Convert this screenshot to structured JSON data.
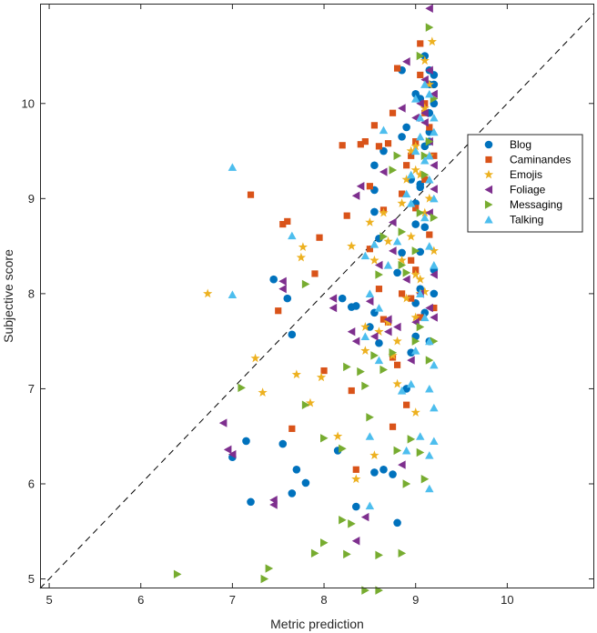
{
  "chart_data": {
    "type": "scatter",
    "title": "",
    "xlabel": "Metric prediction",
    "ylabel": "Subjective score",
    "xlim": [
      4.9,
      10.95
    ],
    "ylim": [
      4.9,
      11.05
    ],
    "xticks": [
      5,
      6,
      7,
      8,
      9,
      10
    ],
    "yticks": [
      5,
      6,
      7,
      8,
      9,
      10
    ],
    "grid": false,
    "legend_position": "right",
    "reference_line": {
      "x": [
        4.9,
        10.95
      ],
      "y": [
        4.9,
        10.95
      ],
      "style": "dashed",
      "color": "#000000"
    },
    "series": [
      {
        "name": "Blog",
        "marker": "circle",
        "color": "#0072BD",
        "points": [
          [
            7.0,
            6.28
          ],
          [
            7.15,
            6.45
          ],
          [
            7.2,
            5.81
          ],
          [
            7.55,
            6.42
          ],
          [
            7.65,
            5.9
          ],
          [
            7.7,
            6.15
          ],
          [
            7.8,
            6.01
          ],
          [
            7.45,
            8.15
          ],
          [
            7.6,
            7.95
          ],
          [
            7.65,
            7.57
          ],
          [
            8.2,
            7.95
          ],
          [
            8.3,
            7.86
          ],
          [
            8.35,
            7.87
          ],
          [
            8.15,
            6.35
          ],
          [
            8.35,
            5.76
          ],
          [
            8.5,
            7.65
          ],
          [
            8.55,
            7.8
          ],
          [
            8.6,
            7.48
          ],
          [
            8.55,
            6.12
          ],
          [
            8.65,
            6.15
          ],
          [
            8.75,
            6.1
          ],
          [
            8.8,
            5.59
          ],
          [
            8.85,
            8.43
          ],
          [
            8.9,
            7.0
          ],
          [
            8.95,
            7.38
          ],
          [
            9.0,
            7.55
          ],
          [
            8.55,
            8.86
          ],
          [
            8.55,
            9.35
          ],
          [
            8.55,
            9.09
          ],
          [
            8.6,
            8.58
          ],
          [
            8.65,
            9.5
          ],
          [
            8.8,
            8.22
          ],
          [
            8.85,
            9.65
          ],
          [
            8.9,
            9.75
          ],
          [
            8.95,
            9.2
          ],
          [
            9.0,
            8.95
          ],
          [
            9.0,
            8.73
          ],
          [
            9.05,
            8.44
          ],
          [
            9.0,
            7.9
          ],
          [
            9.05,
            9.12
          ],
          [
            9.1,
            9.55
          ],
          [
            9.1,
            8.7
          ],
          [
            9.15,
            9.9
          ],
          [
            9.15,
            10.2
          ],
          [
            9.2,
            10.3
          ],
          [
            9.15,
            10.35
          ],
          [
            9.2,
            10.0
          ],
          [
            9.05,
            10.05
          ],
          [
            8.85,
            10.35
          ],
          [
            9.0,
            10.1
          ],
          [
            9.1,
            7.8
          ],
          [
            9.2,
            8.0
          ],
          [
            9.15,
            7.5
          ],
          [
            9.15,
            9.6
          ],
          [
            9.05,
            9.15
          ],
          [
            9.1,
            10.5
          ],
          [
            9.2,
            10.2
          ],
          [
            9.15,
            9.7
          ],
          [
            9.2,
            8.25
          ],
          [
            9.05,
            8.05
          ]
        ]
      },
      {
        "name": "Caminandes",
        "marker": "square",
        "color": "#D95319",
        "points": [
          [
            7.2,
            9.04
          ],
          [
            7.55,
            8.73
          ],
          [
            7.6,
            8.76
          ],
          [
            7.5,
            7.82
          ],
          [
            7.95,
            8.59
          ],
          [
            7.9,
            8.21
          ],
          [
            8.0,
            7.19
          ],
          [
            7.65,
            6.58
          ],
          [
            8.25,
            8.82
          ],
          [
            8.3,
            6.98
          ],
          [
            8.35,
            6.15
          ],
          [
            8.2,
            9.56
          ],
          [
            8.4,
            9.57
          ],
          [
            8.45,
            9.6
          ],
          [
            8.5,
            9.13
          ],
          [
            8.55,
            9.77
          ],
          [
            8.6,
            9.55
          ],
          [
            8.65,
            8.88
          ],
          [
            8.7,
            9.58
          ],
          [
            8.75,
            9.9
          ],
          [
            8.8,
            10.37
          ],
          [
            8.75,
            7.33
          ],
          [
            8.8,
            7.25
          ],
          [
            8.75,
            6.6
          ],
          [
            8.9,
            6.83
          ],
          [
            8.95,
            7.95
          ],
          [
            8.9,
            9.35
          ],
          [
            9.0,
            9.6
          ],
          [
            9.05,
            10.63
          ],
          [
            8.85,
            9.05
          ],
          [
            8.95,
            8.35
          ],
          [
            9.0,
            8.25
          ],
          [
            9.05,
            10.3
          ],
          [
            9.1,
            9.9
          ],
          [
            9.1,
            9.2
          ],
          [
            9.15,
            8.62
          ],
          [
            9.2,
            9.45
          ],
          [
            9.2,
            7.85
          ],
          [
            9.15,
            9.75
          ],
          [
            9.05,
            7.75
          ],
          [
            9.1,
            10.0
          ],
          [
            8.5,
            8.47
          ],
          [
            8.6,
            8.05
          ],
          [
            8.65,
            7.73
          ],
          [
            8.7,
            7.7
          ],
          [
            8.85,
            8.0
          ],
          [
            8.95,
            9.45
          ],
          [
            9.0,
            8.9
          ]
        ]
      },
      {
        "name": "Emojis",
        "marker": "star",
        "color": "#EDB120",
        "points": [
          [
            6.73,
            8.0
          ],
          [
            7.25,
            7.32
          ],
          [
            7.33,
            6.96
          ],
          [
            7.7,
            7.15
          ],
          [
            7.75,
            8.38
          ],
          [
            7.77,
            8.49
          ],
          [
            7.85,
            6.85
          ],
          [
            7.97,
            7.12
          ],
          [
            8.15,
            6.5
          ],
          [
            8.3,
            8.5
          ],
          [
            8.35,
            6.05
          ],
          [
            8.45,
            7.65
          ],
          [
            8.45,
            7.4
          ],
          [
            8.5,
            8.75
          ],
          [
            8.55,
            8.35
          ],
          [
            8.6,
            7.6
          ],
          [
            8.55,
            6.3
          ],
          [
            8.7,
            7.7
          ],
          [
            8.75,
            7.35
          ],
          [
            8.8,
            7.5
          ],
          [
            8.8,
            7.05
          ],
          [
            8.9,
            7.95
          ],
          [
            9.0,
            6.75
          ],
          [
            9.0,
            8.2
          ],
          [
            9.05,
            8.15
          ],
          [
            9.1,
            8.02
          ],
          [
            9.0,
            9.3
          ],
          [
            8.85,
            8.95
          ],
          [
            8.95,
            9.5
          ],
          [
            9.0,
            9.55
          ],
          [
            9.1,
            9.95
          ],
          [
            9.15,
            10.2
          ],
          [
            9.18,
            10.65
          ],
          [
            9.1,
            10.45
          ],
          [
            9.05,
            8.0
          ],
          [
            8.65,
            8.85
          ],
          [
            8.9,
            9.2
          ],
          [
            9.05,
            9.25
          ],
          [
            9.1,
            8.85
          ],
          [
            9.15,
            9.0
          ],
          [
            8.7,
            8.55
          ],
          [
            8.85,
            8.35
          ],
          [
            8.95,
            8.6
          ],
          [
            9.15,
            9.45
          ],
          [
            9.2,
            8.45
          ],
          [
            9.0,
            7.75
          ]
        ]
      },
      {
        "name": "Foliage",
        "marker": "triangle-left",
        "color": "#7E2F8E",
        "points": [
          [
            6.9,
            6.64
          ],
          [
            6.95,
            6.36
          ],
          [
            7.0,
            6.31
          ],
          [
            7.45,
            5.83
          ],
          [
            7.45,
            5.78
          ],
          [
            7.55,
            8.13
          ],
          [
            7.55,
            8.05
          ],
          [
            8.1,
            7.95
          ],
          [
            8.1,
            7.85
          ],
          [
            8.35,
            5.4
          ],
          [
            8.45,
            5.65
          ],
          [
            8.3,
            7.6
          ],
          [
            8.35,
            7.5
          ],
          [
            8.5,
            7.92
          ],
          [
            8.55,
            7.55
          ],
          [
            8.6,
            8.3
          ],
          [
            8.7,
            7.73
          ],
          [
            8.7,
            7.6
          ],
          [
            8.8,
            7.65
          ],
          [
            8.85,
            6.2
          ],
          [
            8.95,
            7.3
          ],
          [
            8.35,
            9.03
          ],
          [
            8.4,
            9.13
          ],
          [
            8.65,
            9.28
          ],
          [
            8.75,
            8.75
          ],
          [
            8.85,
            9.95
          ],
          [
            8.9,
            10.44
          ],
          [
            9.0,
            9.85
          ],
          [
            9.05,
            10.0
          ],
          [
            9.1,
            10.25
          ],
          [
            9.15,
            11.0
          ],
          [
            9.15,
            10.35
          ],
          [
            9.2,
            10.1
          ],
          [
            9.1,
            9.8
          ],
          [
            9.15,
            9.6
          ],
          [
            9.2,
            9.35
          ],
          [
            9.15,
            8.85
          ],
          [
            9.2,
            8.2
          ],
          [
            9.05,
            8.0
          ],
          [
            9.15,
            7.85
          ],
          [
            9.2,
            7.75
          ],
          [
            9.0,
            7.7
          ],
          [
            8.9,
            8.15
          ],
          [
            9.2,
            9.1
          ],
          [
            9.1,
            9.9
          ],
          [
            8.75,
            8.45
          ]
        ]
      },
      {
        "name": "Messaging",
        "marker": "triangle-right",
        "color": "#77AC30",
        "points": [
          [
            6.4,
            5.05
          ],
          [
            7.35,
            5.0
          ],
          [
            7.4,
            5.11
          ],
          [
            7.1,
            7.01
          ],
          [
            7.8,
            6.83
          ],
          [
            7.8,
            8.1
          ],
          [
            7.9,
            5.27
          ],
          [
            8.0,
            5.38
          ],
          [
            8.0,
            6.48
          ],
          [
            8.2,
            5.62
          ],
          [
            8.2,
            6.37
          ],
          [
            8.25,
            5.26
          ],
          [
            8.3,
            5.58
          ],
          [
            8.25,
            7.23
          ],
          [
            8.4,
            7.18
          ],
          [
            8.45,
            4.88
          ],
          [
            8.5,
            6.7
          ],
          [
            8.6,
            4.88
          ],
          [
            8.6,
            5.25
          ],
          [
            8.65,
            7.2
          ],
          [
            8.75,
            7.38
          ],
          [
            8.8,
            6.35
          ],
          [
            8.85,
            5.27
          ],
          [
            8.9,
            6.0
          ],
          [
            8.95,
            6.47
          ],
          [
            9.05,
            6.33
          ],
          [
            9.1,
            6.05
          ],
          [
            9.0,
            7.5
          ],
          [
            9.05,
            7.65
          ],
          [
            8.45,
            7.03
          ],
          [
            8.55,
            7.35
          ],
          [
            8.6,
            8.2
          ],
          [
            8.75,
            9.3
          ],
          [
            8.8,
            9.45
          ],
          [
            8.85,
            8.3
          ],
          [
            8.9,
            8.22
          ],
          [
            9.0,
            8.45
          ],
          [
            9.05,
            8.85
          ],
          [
            9.1,
            9.45
          ],
          [
            9.15,
            9.6
          ],
          [
            9.2,
            10.05
          ],
          [
            9.15,
            10.8
          ],
          [
            9.05,
            10.5
          ],
          [
            9.1,
            9.25
          ],
          [
            9.2,
            8.8
          ],
          [
            9.2,
            7.5
          ],
          [
            9.15,
            7.3
          ],
          [
            8.65,
            8.6
          ],
          [
            8.85,
            8.65
          ]
        ]
      },
      {
        "name": "Talking",
        "marker": "triangle-up",
        "color": "#4DBEEE",
        "points": [
          [
            7.0,
            9.33
          ],
          [
            7.0,
            7.99
          ],
          [
            7.65,
            8.61
          ],
          [
            8.5,
            6.5
          ],
          [
            8.5,
            5.77
          ],
          [
            8.55,
            8.52
          ],
          [
            8.65,
            9.72
          ],
          [
            8.8,
            8.55
          ],
          [
            8.9,
            9.05
          ],
          [
            8.95,
            8.95
          ],
          [
            9.0,
            9.5
          ],
          [
            9.05,
            9.85
          ],
          [
            9.1,
            10.2
          ],
          [
            9.15,
            10.1
          ],
          [
            9.2,
            9.7
          ],
          [
            9.15,
            9.45
          ],
          [
            9.2,
            9.0
          ],
          [
            9.1,
            8.8
          ],
          [
            9.15,
            8.5
          ],
          [
            9.2,
            8.3
          ],
          [
            9.05,
            8.0
          ],
          [
            9.1,
            7.75
          ],
          [
            9.15,
            7.5
          ],
          [
            9.2,
            7.25
          ],
          [
            9.15,
            7.0
          ],
          [
            9.2,
            6.8
          ],
          [
            9.15,
            6.3
          ],
          [
            9.2,
            6.45
          ],
          [
            9.15,
            5.95
          ],
          [
            9.05,
            6.5
          ],
          [
            8.9,
            6.35
          ],
          [
            8.95,
            7.05
          ],
          [
            8.85,
            6.98
          ],
          [
            8.6,
            7.3
          ],
          [
            8.45,
            7.55
          ],
          [
            8.6,
            7.85
          ],
          [
            8.7,
            8.3
          ],
          [
            8.95,
            9.25
          ],
          [
            9.0,
            10.05
          ],
          [
            9.05,
            9.65
          ],
          [
            9.1,
            9.4
          ],
          [
            9.2,
            9.85
          ],
          [
            9.15,
            9.2
          ],
          [
            8.5,
            8.0
          ],
          [
            8.45,
            8.4
          ],
          [
            9.0,
            7.4
          ]
        ]
      }
    ]
  }
}
